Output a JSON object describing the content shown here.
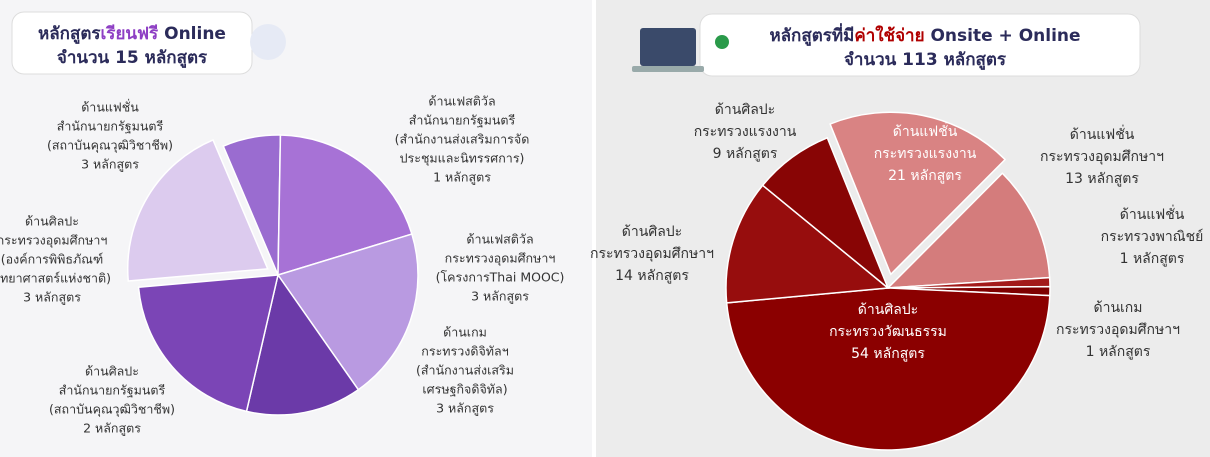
{
  "chart_data": [
    {
      "type": "pie",
      "title": [
        "หลักสูตร",
        "เรียนฟรี",
        " Online"
      ],
      "subtitle": "จำนวน 15 หลักสูตร",
      "categories": [
        [
          "ด้านแฟชั่น",
          "สำนักนายกรัฐมนตรี",
          "(สถาบันคุณวุฒิวิชาชีพ)"
        ],
        [
          "ด้านเฟสติวัล",
          "สำนักนายกรัฐมนตรี",
          "(สำนักงานส่งเสริมการจัด",
          "ประชุมและนิทรรศการ)"
        ],
        [
          "ด้านเฟสติวัล",
          "กระทรวงอุดมศึกษาฯ",
          "(โครงการThai MOOC)"
        ],
        [
          "ด้านเกม",
          "กระทรวงดิจิทัลฯ",
          "(สำนักงานส่งเสริม",
          "เศรษฐกิจดิจิทัล)"
        ],
        [
          "ด้านศิลปะ",
          "สำนักนายกรัฐมนตรี",
          "(สถาบันคุณวุฒิวิชาชีพ)"
        ],
        [
          "ด้านศิลปะ",
          "กระทรวงอุดมศึกษาฯ",
          "(องค์การพิพิธภัณฑ์",
          "วิทยาศาสตร์แห่งชาติ)"
        ]
      ],
      "values": [
        3,
        1,
        3,
        3,
        2,
        3
      ],
      "value_labels": [
        "3 หลักสูตร",
        "1 หลักสูตร",
        "3 หลักสูตร",
        "3 หลักสูตร",
        "2 หลักสูตร",
        "3 หลักสูตร"
      ],
      "colors": [
        "#dccbee",
        "#9a6cd0",
        "#a772d6",
        "#b99ae1",
        "#6b3aa8",
        "#7b45b6"
      ]
    },
    {
      "type": "pie",
      "title": [
        "หลักสูตรที่มี",
        "ค่าใช้จ่าย",
        " Onsite + Online"
      ],
      "subtitle": "จำนวน 113 หลักสูตร",
      "categories": [
        [
          "ด้านแฟชั่น",
          "กระทรวงแรงงาน"
        ],
        [
          "ด้านแฟชั่น",
          "กระทรวงอุดมศึกษาฯ"
        ],
        [
          "ด้านแฟชั่น",
          "กระทรวงพาณิชย์"
        ],
        [
          "ด้านเกม",
          "กระทรวงอุดมศึกษาฯ"
        ],
        [
          "ด้านศิลปะ",
          "กระทรวงวัฒนธรรม"
        ],
        [
          "ด้านศิลปะ",
          "กระทรวงอุดมศึกษาฯ"
        ],
        [
          "ด้านศิลปะ",
          "กระทรวงแรงงาน"
        ]
      ],
      "values": [
        21,
        13,
        1,
        1,
        54,
        14,
        9
      ],
      "value_labels": [
        "21 หลักสูตร",
        "13 หลักสูตร",
        "1 หลักสูตร",
        "1 หลักสูตร",
        "54 หลักสูตร",
        "14 หลักสูตร",
        "9 หลักสูตร"
      ],
      "colors": [
        "#d98383",
        "#d47c7c",
        "#a31a1a",
        "#7e0000",
        "#8b0000",
        "#970d0d",
        "#880505"
      ]
    }
  ]
}
